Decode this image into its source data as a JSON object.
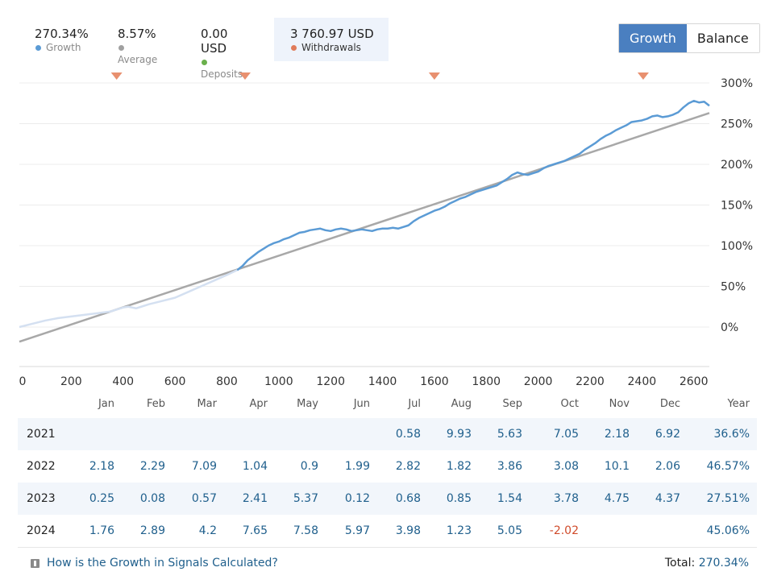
{
  "stats": {
    "growth": {
      "value": "270.34%",
      "label": "Growth",
      "color": "#5b9bd5"
    },
    "average": {
      "value": "8.57%",
      "label": "Average",
      "color": "#a0a0a0"
    },
    "deposits": {
      "value": "0.00 USD",
      "label": "Deposits",
      "color": "#6ab04c"
    },
    "withdrawals": {
      "value": "3 760.97 USD",
      "label": "Withdrawals",
      "color": "#e07b5a"
    }
  },
  "toggle": {
    "growth_label": "Growth",
    "balance_label": "Balance"
  },
  "chart_data": {
    "type": "line",
    "x_ticks": [
      "0",
      "200",
      "400",
      "600",
      "800",
      "1000",
      "1200",
      "1400",
      "1600",
      "1800",
      "2000",
      "2200",
      "2400",
      "2600"
    ],
    "y_ticks": [
      "300%",
      "250%",
      "200%",
      "150%",
      "100%",
      "50%",
      "0%"
    ],
    "xlim": [
      0,
      2660
    ],
    "ylim": [
      -47,
      300
    ],
    "grid": true,
    "withdrawal_markers_x": [
      375,
      870,
      1600,
      2405
    ],
    "series": [
      {
        "color": "#5b9bd5",
        "points": [
          [
            0,
            0
          ],
          [
            50,
            4
          ],
          [
            100,
            8
          ],
          [
            150,
            11
          ],
          [
            200,
            13
          ],
          [
            250,
            15
          ],
          [
            300,
            17
          ],
          [
            350,
            19
          ],
          [
            380,
            22
          ],
          [
            400,
            24
          ],
          [
            420,
            25
          ],
          [
            450,
            23
          ],
          [
            470,
            25
          ],
          [
            500,
            28
          ],
          [
            550,
            32
          ],
          [
            600,
            36
          ],
          [
            650,
            43
          ],
          [
            700,
            50
          ],
          [
            750,
            57
          ],
          [
            800,
            64
          ],
          [
            840,
            70
          ],
          [
            860,
            75
          ],
          [
            880,
            82
          ],
          [
            900,
            87
          ],
          [
            920,
            92
          ],
          [
            940,
            96
          ],
          [
            960,
            100
          ],
          [
            980,
            103
          ],
          [
            1000,
            105
          ],
          [
            1020,
            108
          ],
          [
            1040,
            110
          ],
          [
            1060,
            113
          ],
          [
            1080,
            116
          ],
          [
            1100,
            117
          ],
          [
            1120,
            119
          ],
          [
            1140,
            120
          ],
          [
            1160,
            121
          ],
          [
            1180,
            119
          ],
          [
            1200,
            118
          ],
          [
            1220,
            120
          ],
          [
            1240,
            121
          ],
          [
            1260,
            120
          ],
          [
            1280,
            118
          ],
          [
            1300,
            119
          ],
          [
            1320,
            120
          ],
          [
            1340,
            119
          ],
          [
            1360,
            118
          ],
          [
            1380,
            120
          ],
          [
            1400,
            121
          ],
          [
            1420,
            121
          ],
          [
            1440,
            122
          ],
          [
            1460,
            121
          ],
          [
            1480,
            123
          ],
          [
            1500,
            125
          ],
          [
            1520,
            130
          ],
          [
            1540,
            134
          ],
          [
            1560,
            137
          ],
          [
            1580,
            140
          ],
          [
            1600,
            143
          ],
          [
            1620,
            145
          ],
          [
            1640,
            148
          ],
          [
            1660,
            152
          ],
          [
            1680,
            155
          ],
          [
            1700,
            158
          ],
          [
            1720,
            160
          ],
          [
            1740,
            163
          ],
          [
            1760,
            166
          ],
          [
            1780,
            168
          ],
          [
            1800,
            170
          ],
          [
            1820,
            172
          ],
          [
            1840,
            174
          ],
          [
            1860,
            178
          ],
          [
            1880,
            182
          ],
          [
            1900,
            187
          ],
          [
            1920,
            190
          ],
          [
            1940,
            188
          ],
          [
            1960,
            187
          ],
          [
            1980,
            189
          ],
          [
            2000,
            191
          ],
          [
            2020,
            195
          ],
          [
            2040,
            198
          ],
          [
            2060,
            200
          ],
          [
            2080,
            202
          ],
          [
            2100,
            204
          ],
          [
            2120,
            207
          ],
          [
            2140,
            210
          ],
          [
            2160,
            213
          ],
          [
            2180,
            218
          ],
          [
            2200,
            222
          ],
          [
            2220,
            226
          ],
          [
            2240,
            231
          ],
          [
            2260,
            235
          ],
          [
            2280,
            238
          ],
          [
            2300,
            242
          ],
          [
            2320,
            245
          ],
          [
            2340,
            248
          ],
          [
            2360,
            252
          ],
          [
            2380,
            253
          ],
          [
            2400,
            254
          ],
          [
            2420,
            256
          ],
          [
            2440,
            259
          ],
          [
            2460,
            260
          ],
          [
            2480,
            258
          ],
          [
            2500,
            259
          ],
          [
            2520,
            261
          ],
          [
            2540,
            264
          ],
          [
            2560,
            270
          ],
          [
            2580,
            275
          ],
          [
            2600,
            278
          ],
          [
            2620,
            276
          ],
          [
            2640,
            277
          ],
          [
            2660,
            272
          ]
        ]
      },
      {
        "color": "#a8a8a8",
        "points": [
          [
            0,
            -18
          ],
          [
            2660,
            263
          ]
        ]
      }
    ]
  },
  "table": {
    "headers": [
      "Jan",
      "Feb",
      "Mar",
      "Apr",
      "May",
      "Jun",
      "Jul",
      "Aug",
      "Sep",
      "Oct",
      "Nov",
      "Dec",
      "Year"
    ],
    "rows": [
      {
        "year": "2021",
        "values": [
          "",
          "",
          "",
          "",
          "",
          "",
          "0.58",
          "9.93",
          "5.63",
          "7.05",
          "2.18",
          "6.92",
          "36.6%"
        ]
      },
      {
        "year": "2022",
        "values": [
          "2.18",
          "2.29",
          "7.09",
          "1.04",
          "0.9",
          "1.99",
          "2.82",
          "1.82",
          "3.86",
          "3.08",
          "10.1",
          "2.06",
          "46.57%"
        ]
      },
      {
        "year": "2023",
        "values": [
          "0.25",
          "0.08",
          "0.57",
          "2.41",
          "5.37",
          "0.12",
          "0.68",
          "0.85",
          "1.54",
          "3.78",
          "4.75",
          "4.37",
          "27.51%"
        ]
      },
      {
        "year": "2024",
        "values": [
          "1.76",
          "2.89",
          "4.2",
          "7.65",
          "7.58",
          "5.97",
          "3.98",
          "1.23",
          "5.05",
          "-2.02",
          "",
          "",
          "45.06%"
        ]
      }
    ]
  },
  "footer": {
    "help_text": "How is the Growth in Signals Calculated?",
    "total_label": "Total:",
    "total_value": "270.34%"
  }
}
